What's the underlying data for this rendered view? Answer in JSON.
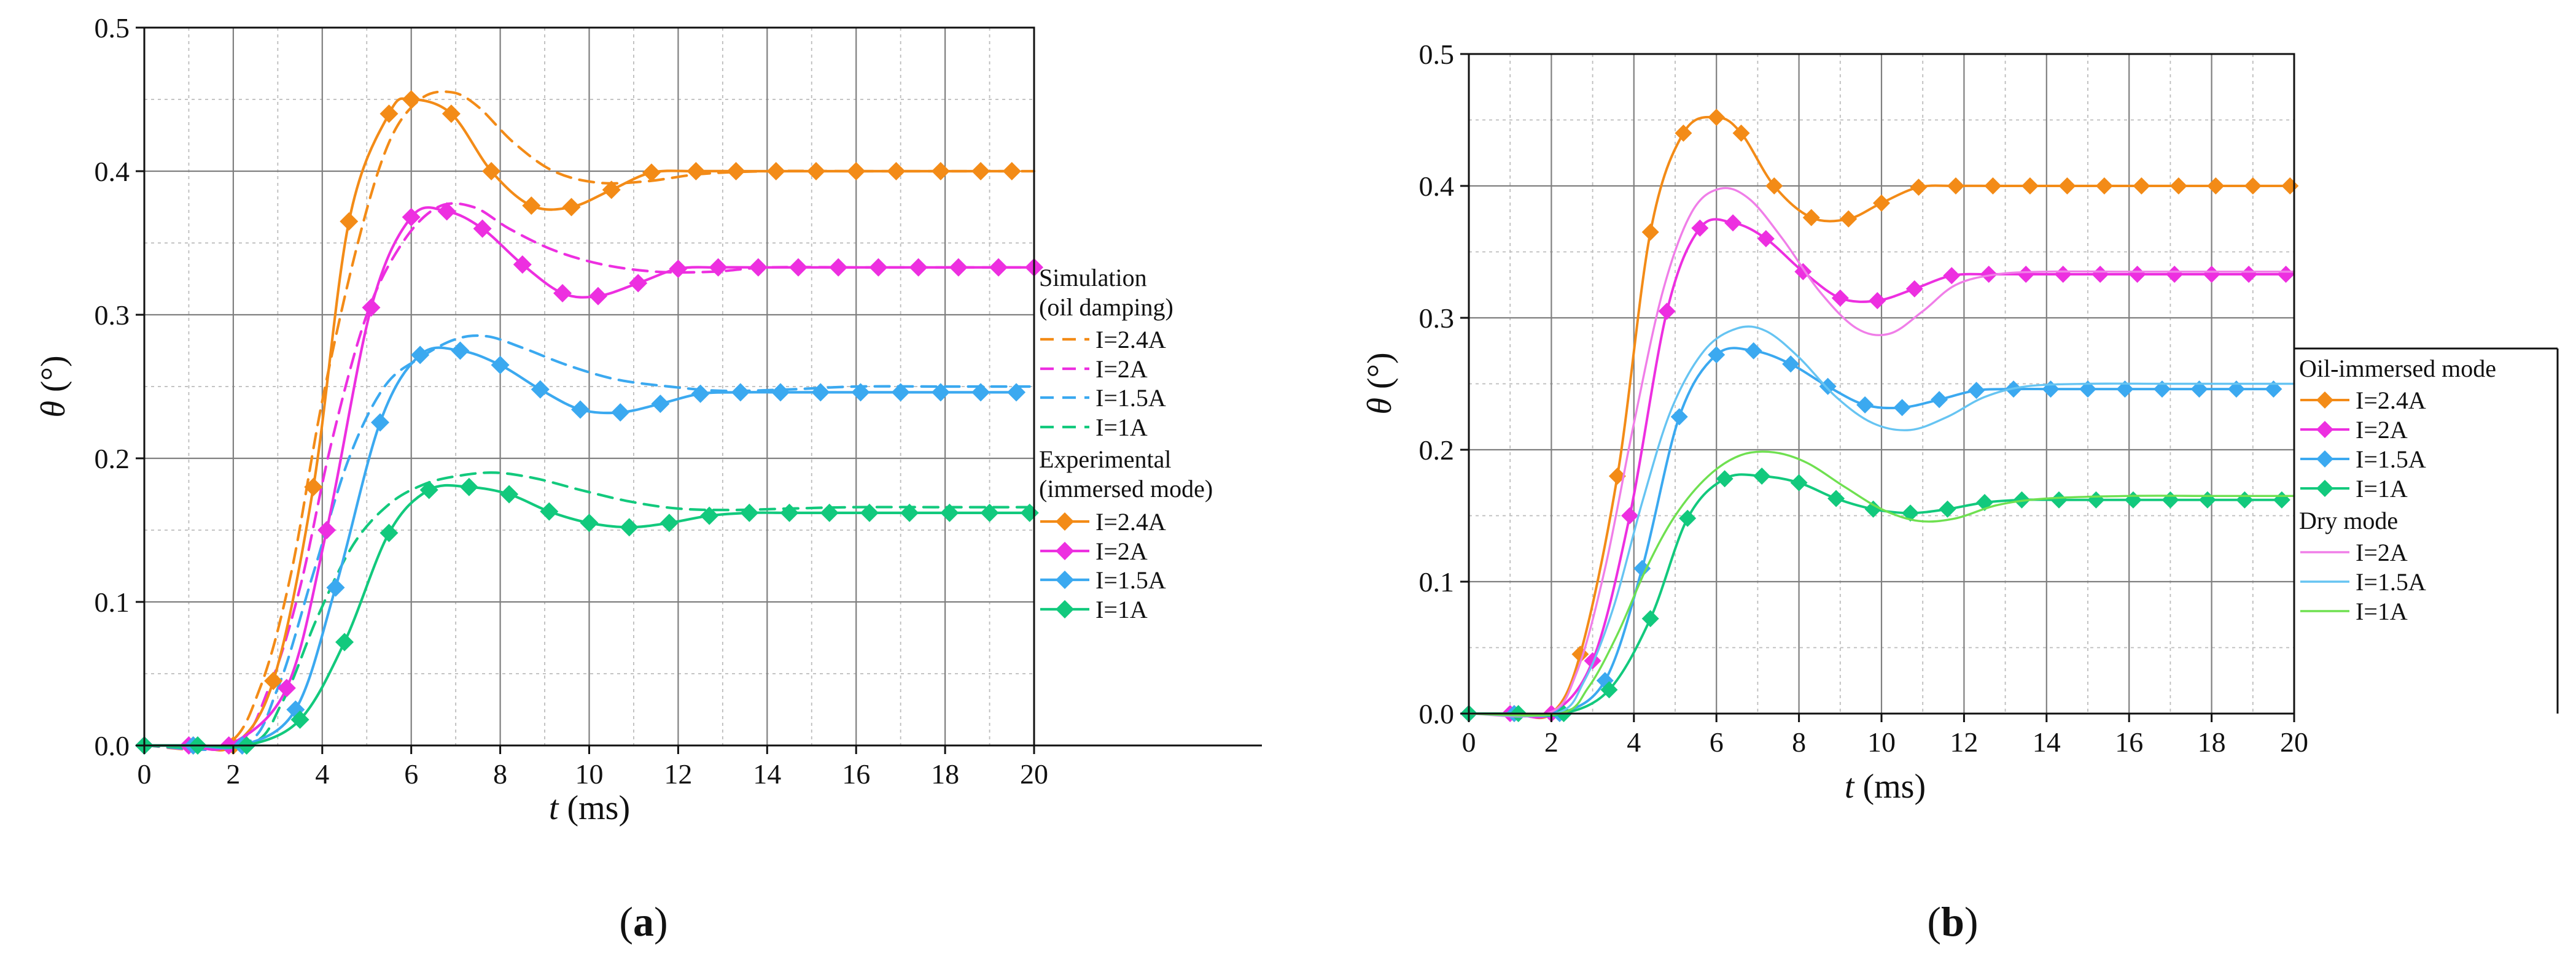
{
  "figure": {
    "label_a": "a",
    "label_b": "b"
  },
  "colors": {
    "I_2_4A": "#f38b17",
    "I_2A": "#ed2fe0",
    "I_1_5A": "#3ba9f0",
    "I_1A": "#12c97d",
    "dry_2A": "#f07ee8",
    "dry_1_5A": "#66c4f2",
    "dry_1A": "#6fe050"
  },
  "chart_data": [
    {
      "id": "a",
      "type": "line",
      "xlabel_var": "t",
      "xlabel_unit": " (ms)",
      "ylabel_var": "θ",
      "ylabel_unit": " (°)",
      "xlim": [
        0,
        20
      ],
      "ylim": [
        0,
        0.5
      ],
      "xticks": [
        "0",
        "2",
        "4",
        "6",
        "8",
        "10",
        "12",
        "14",
        "16",
        "18",
        "20"
      ],
      "yticks": [
        "0.0",
        "0.1",
        "0.2",
        "0.3",
        "0.4",
        "0.5"
      ],
      "legend": {
        "headers": [
          "Simulation",
          "(oil damping)",
          "Experimental",
          "(immersed mode)"
        ],
        "entries": [
          "I=2.4A",
          "I=2A",
          "I=1.5A",
          "I=1A",
          "I=2.4A",
          "I=2A",
          "I=1.5A",
          "I=1A"
        ]
      },
      "series": [
        {
          "name": "Simulation I=2.4A",
          "style": "dashed",
          "color_key": "I_2_4A",
          "x": [
            0,
            1.8,
            2.6,
            3.3,
            4.0,
            4.8,
            5.5,
            6.2,
            6.9,
            7.5,
            8.3,
            9.2,
            10.2,
            11.3,
            12.5,
            14,
            16,
            18,
            20
          ],
          "y": [
            0,
            0,
            0.04,
            0.12,
            0.24,
            0.35,
            0.42,
            0.45,
            0.455,
            0.445,
            0.42,
            0.4,
            0.392,
            0.393,
            0.398,
            0.4,
            0.4,
            0.4,
            0.4
          ]
        },
        {
          "name": "Simulation I=2A",
          "style": "dashed",
          "color_key": "I_2A",
          "x": [
            0,
            2.0,
            2.8,
            3.5,
            4.2,
            5.0,
            5.8,
            6.6,
            7.4,
            8.2,
            9.2,
            10.3,
            11.5,
            12.8,
            14,
            16,
            18,
            20
          ],
          "y": [
            0,
            0,
            0.04,
            0.11,
            0.21,
            0.3,
            0.35,
            0.375,
            0.375,
            0.36,
            0.345,
            0.335,
            0.33,
            0.33,
            0.333,
            0.333,
            0.333,
            0.333
          ]
        },
        {
          "name": "Simulation I=1.5A",
          "style": "dashed",
          "color_key": "I_1_5A",
          "x": [
            0,
            2.2,
            3.0,
            3.8,
            4.6,
            5.4,
            6.2,
            7.0,
            7.7,
            8.5,
            9.5,
            10.6,
            11.8,
            13,
            14.5,
            16,
            18,
            20
          ],
          "y": [
            0,
            0,
            0.04,
            0.12,
            0.2,
            0.25,
            0.27,
            0.283,
            0.285,
            0.277,
            0.265,
            0.255,
            0.25,
            0.247,
            0.248,
            0.25,
            0.25,
            0.25
          ]
        },
        {
          "name": "Simulation I=1A",
          "style": "dashed",
          "color_key": "I_1A",
          "x": [
            0,
            2.3,
            3.1,
            3.9,
            4.7,
            5.5,
            6.3,
            7.1,
            7.9,
            8.8,
            9.8,
            10.9,
            12,
            13.2,
            14.5,
            16,
            18,
            20
          ],
          "y": [
            0,
            0,
            0.03,
            0.09,
            0.14,
            0.168,
            0.182,
            0.188,
            0.19,
            0.186,
            0.178,
            0.17,
            0.165,
            0.164,
            0.165,
            0.166,
            0.166,
            0.166
          ]
        },
        {
          "name": "Experimental I=2.4A",
          "style": "solid-diamond",
          "color_key": "I_2_4A",
          "x": [
            0,
            1.1,
            2.0,
            2.9,
            3.8,
            4.6,
            5.5,
            6.0,
            6.9,
            7.8,
            8.7,
            9.6,
            10.5,
            11.4,
            12.4,
            13.3,
            14.2,
            15.1,
            16.0,
            16.9,
            17.9,
            18.8,
            19.5
          ],
          "y": [
            0,
            0,
            0,
            0.045,
            0.18,
            0.365,
            0.44,
            0.45,
            0.44,
            0.4,
            0.376,
            0.375,
            0.387,
            0.399,
            0.4,
            0.4,
            0.4,
            0.4,
            0.4,
            0.4,
            0.4,
            0.4,
            0.4
          ]
        },
        {
          "name": "Experimental I=2A",
          "style": "solid-diamond",
          "color_key": "I_2A",
          "x": [
            0,
            1.0,
            1.9,
            3.2,
            4.1,
            5.1,
            6.0,
            6.8,
            7.6,
            8.5,
            9.4,
            10.2,
            11.1,
            12.0,
            12.9,
            13.8,
            14.7,
            15.6,
            16.5,
            17.4,
            18.3,
            19.2,
            20.0
          ],
          "y": [
            0,
            0,
            0,
            0.04,
            0.15,
            0.305,
            0.368,
            0.372,
            0.36,
            0.335,
            0.315,
            0.313,
            0.322,
            0.332,
            0.333,
            0.333,
            0.333,
            0.333,
            0.333,
            0.333,
            0.333,
            0.333,
            0.333
          ]
        },
        {
          "name": "Experimental I=1.5A",
          "style": "solid-diamond",
          "color_key": "I_1_5A",
          "x": [
            0,
            1.1,
            2.2,
            3.4,
            4.3,
            5.3,
            6.2,
            7.1,
            8.0,
            8.9,
            9.8,
            10.7,
            11.6,
            12.5,
            13.4,
            14.3,
            15.2,
            16.1,
            17.0,
            17.9,
            18.8,
            19.6
          ],
          "y": [
            0,
            0,
            0,
            0.025,
            0.11,
            0.225,
            0.272,
            0.275,
            0.265,
            0.248,
            0.234,
            0.232,
            0.238,
            0.245,
            0.246,
            0.246,
            0.246,
            0.246,
            0.246,
            0.246,
            0.246,
            0.246
          ]
        },
        {
          "name": "Experimental I=1A",
          "style": "solid-diamond",
          "color_key": "I_1A",
          "x": [
            0,
            1.2,
            2.3,
            3.5,
            4.5,
            5.5,
            6.4,
            7.3,
            8.2,
            9.1,
            10.0,
            10.9,
            11.8,
            12.7,
            13.6,
            14.5,
            15.4,
            16.3,
            17.2,
            18.1,
            19.0,
            19.9
          ],
          "y": [
            0,
            0,
            0,
            0.018,
            0.072,
            0.148,
            0.178,
            0.18,
            0.175,
            0.163,
            0.155,
            0.152,
            0.155,
            0.16,
            0.162,
            0.162,
            0.162,
            0.162,
            0.162,
            0.162,
            0.162,
            0.162
          ]
        }
      ]
    },
    {
      "id": "b",
      "type": "line",
      "xlabel_var": "t",
      "xlabel_unit": " (ms)",
      "ylabel_var": "θ",
      "ylabel_unit": " (°)",
      "xlim": [
        0,
        20
      ],
      "ylim": [
        0,
        0.5
      ],
      "xticks": [
        "0",
        "2",
        "4",
        "6",
        "8",
        "10",
        "12",
        "14",
        "16",
        "18",
        "20"
      ],
      "yticks": [
        "0.0",
        "0.1",
        "0.2",
        "0.3",
        "0.4",
        "0.5"
      ],
      "legend": {
        "headers": [
          "Oil-immersed mode",
          "Dry mode"
        ],
        "entries": [
          "I=2.4A",
          "I=2A",
          "I=1.5A",
          "I=1A",
          "I=2A",
          "I=1.5A",
          "I=1A"
        ]
      },
      "series": [
        {
          "name": "Oil-immersed I=2.4A",
          "style": "solid-diamond",
          "color_key": "I_2_4A",
          "x": [
            0,
            1.1,
            2.0,
            2.7,
            3.6,
            4.4,
            5.2,
            6.0,
            6.6,
            7.4,
            8.3,
            9.2,
            10.0,
            10.9,
            11.8,
            12.7,
            13.6,
            14.5,
            15.4,
            16.3,
            17.2,
            18.1,
            19.0,
            19.9
          ],
          "y": [
            0,
            0,
            0,
            0.045,
            0.18,
            0.365,
            0.44,
            0.452,
            0.44,
            0.4,
            0.376,
            0.375,
            0.387,
            0.399,
            0.4,
            0.4,
            0.4,
            0.4,
            0.4,
            0.4,
            0.4,
            0.4,
            0.4,
            0.4
          ]
        },
        {
          "name": "Oil-immersed I=2A",
          "style": "solid-diamond",
          "color_key": "I_2A",
          "x": [
            0,
            1.0,
            2.0,
            3.0,
            3.9,
            4.8,
            5.6,
            6.4,
            7.2,
            8.1,
            9.0,
            9.9,
            10.8,
            11.7,
            12.6,
            13.5,
            14.4,
            15.3,
            16.2,
            17.1,
            18.0,
            18.9,
            19.8
          ],
          "y": [
            0,
            0,
            0,
            0.04,
            0.15,
            0.305,
            0.368,
            0.372,
            0.36,
            0.335,
            0.315,
            0.313,
            0.322,
            0.332,
            0.333,
            0.333,
            0.333,
            0.333,
            0.333,
            0.333,
            0.333,
            0.333,
            0.333
          ]
        },
        {
          "name": "Oil-immersed I=1.5A",
          "style": "solid-diamond",
          "color_key": "I_1_5A",
          "x": [
            0,
            1.1,
            2.2,
            3.3,
            4.2,
            5.1,
            6.0,
            6.9,
            7.8,
            8.7,
            9.6,
            10.5,
            11.4,
            12.3,
            13.2,
            14.1,
            15.0,
            15.9,
            16.8,
            17.7,
            18.6,
            19.5
          ],
          "y": [
            0,
            0,
            0,
            0.025,
            0.11,
            0.225,
            0.272,
            0.275,
            0.265,
            0.248,
            0.234,
            0.232,
            0.238,
            0.245,
            0.246,
            0.246,
            0.246,
            0.246,
            0.246,
            0.246,
            0.246,
            0.246
          ]
        },
        {
          "name": "Oil-immersed I=1A",
          "style": "solid-diamond",
          "color_key": "I_1A",
          "x": [
            0,
            1.2,
            2.3,
            3.4,
            4.4,
            5.3,
            6.2,
            7.1,
            8.0,
            8.9,
            9.8,
            10.7,
            11.6,
            12.5,
            13.4,
            14.3,
            15.2,
            16.1,
            17.0,
            17.9,
            18.8,
            19.7
          ],
          "y": [
            0,
            0,
            0,
            0.018,
            0.072,
            0.148,
            0.178,
            0.18,
            0.175,
            0.163,
            0.155,
            0.152,
            0.155,
            0.16,
            0.162,
            0.162,
            0.162,
            0.162,
            0.162,
            0.162,
            0.162,
            0.162
          ]
        },
        {
          "name": "Dry I=2A",
          "style": "solid",
          "color_key": "dry_2A",
          "x": [
            0,
            1.9,
            2.6,
            3.3,
            4.0,
            4.7,
            5.4,
            6.1,
            6.8,
            7.6,
            8.5,
            9.4,
            10.2,
            11.0,
            11.8,
            12.8,
            14,
            16,
            18,
            20
          ],
          "y": [
            0,
            0,
            0.03,
            0.11,
            0.22,
            0.32,
            0.38,
            0.398,
            0.39,
            0.36,
            0.32,
            0.292,
            0.288,
            0.305,
            0.325,
            0.333,
            0.335,
            0.335,
            0.335,
            0.335
          ]
        },
        {
          "name": "Dry I=1.5A",
          "style": "solid",
          "color_key": "dry_1_5A",
          "x": [
            0,
            2.1,
            2.8,
            3.5,
            4.2,
            4.9,
            5.7,
            6.5,
            7.2,
            8.0,
            8.9,
            9.8,
            10.7,
            11.6,
            12.5,
            13.5,
            15,
            17,
            20
          ],
          "y": [
            0,
            0,
            0.025,
            0.08,
            0.16,
            0.23,
            0.275,
            0.292,
            0.29,
            0.27,
            0.24,
            0.22,
            0.215,
            0.225,
            0.24,
            0.248,
            0.25,
            0.25,
            0.25
          ]
        },
        {
          "name": "Dry I=1A",
          "style": "solid",
          "color_key": "dry_1A",
          "x": [
            0,
            2.2,
            2.9,
            3.6,
            4.3,
            5.0,
            5.8,
            6.6,
            7.4,
            8.2,
            9.1,
            10.0,
            10.9,
            11.8,
            12.8,
            14,
            16,
            18,
            20
          ],
          "y": [
            0,
            0,
            0.02,
            0.06,
            0.11,
            0.15,
            0.18,
            0.196,
            0.198,
            0.19,
            0.172,
            0.155,
            0.146,
            0.148,
            0.158,
            0.163,
            0.165,
            0.165,
            0.165
          ]
        }
      ]
    }
  ]
}
